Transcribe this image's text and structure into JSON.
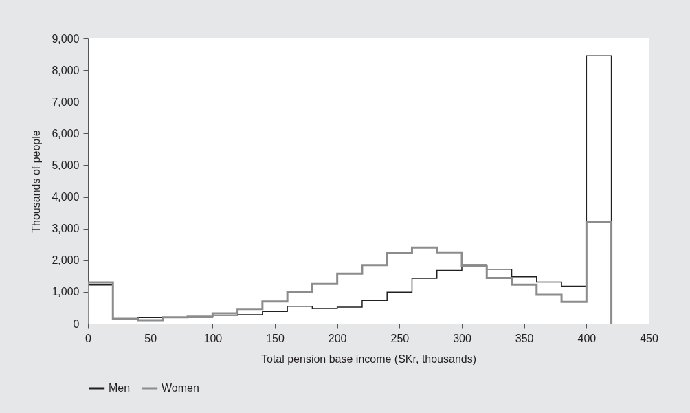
{
  "chart_data": {
    "type": "histogram",
    "xlabel": "Total pension base income (SKr, thousands)",
    "ylabel": "Thousands of people",
    "bins": [
      0,
      20,
      40,
      60,
      80,
      100,
      120,
      140,
      160,
      180,
      200,
      220,
      240,
      260,
      280,
      300,
      320,
      340,
      360,
      380,
      400,
      420
    ],
    "series": [
      {
        "name": "Men",
        "color": "#231f20",
        "values": [
          1220,
          150,
          190,
          200,
          200,
          265,
          280,
          385,
          550,
          475,
          520,
          730,
          990,
          1430,
          1680,
          1860,
          1720,
          1480,
          1310,
          1180,
          8450
        ]
      },
      {
        "name": "Women",
        "color": "#8c8c8c",
        "values": [
          1300,
          150,
          110,
          200,
          220,
          325,
          460,
          700,
          1000,
          1250,
          1580,
          1850,
          2240,
          2400,
          2250,
          1830,
          1440,
          1230,
          910,
          690,
          3200
        ]
      }
    ],
    "xlim": [
      0,
      450
    ],
    "xticks": [
      0,
      50,
      100,
      150,
      200,
      250,
      300,
      350,
      400,
      450
    ],
    "ylim": [
      0,
      9000
    ],
    "yticks": [
      0,
      {
        "value": 1000,
        "label": "1,000"
      },
      {
        "value": 2000,
        "label": "2,000"
      },
      {
        "value": 3000,
        "label": "3,000"
      },
      {
        "value": 4000,
        "label": "4,000"
      },
      {
        "value": 5000,
        "label": "5,000"
      },
      {
        "value": 6000,
        "label": "6,000"
      },
      {
        "value": 7000,
        "label": "7,000"
      },
      {
        "value": 8000,
        "label": "8,000"
      },
      {
        "value": 9000,
        "label": "9,000"
      }
    ],
    "grid": false,
    "legend": "bottom"
  }
}
